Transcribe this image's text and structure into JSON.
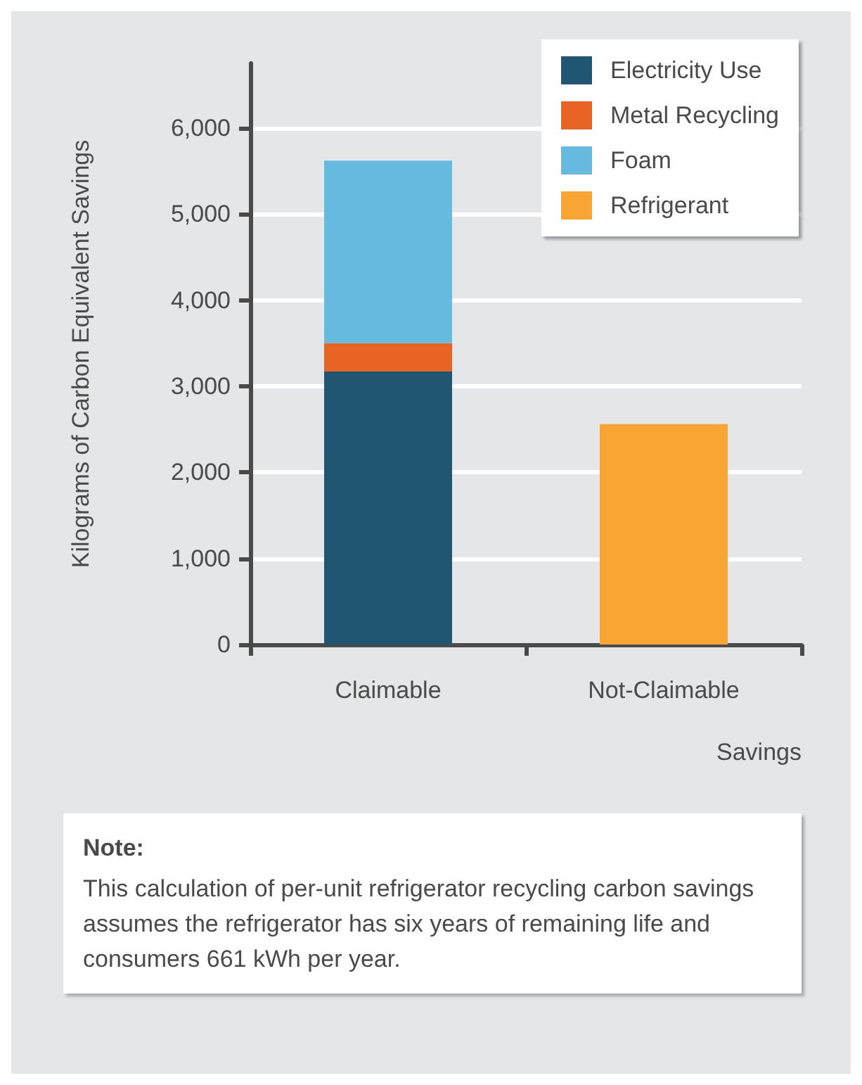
{
  "chart_data": {
    "type": "bar",
    "stacked": true,
    "xlabel": "Savings",
    "ylabel": "Kilograms of Carbon Equivalent Savings",
    "categories": [
      "Claimable",
      "Not-Claimable"
    ],
    "series": [
      {
        "name": "Electricity Use",
        "color": "#215673",
        "values": [
          3170,
          null
        ]
      },
      {
        "name": "Metal Recycling",
        "color": "#e86424",
        "values": [
          330,
          null
        ]
      },
      {
        "name": "Foam",
        "color": "#66b9df",
        "values": [
          2120,
          null
        ]
      },
      {
        "name": "Refrigerant",
        "color": "#f9a533",
        "values": [
          null,
          2560
        ]
      }
    ],
    "ylim": [
      0,
      6750
    ],
    "yticks": [
      0,
      {
        "value": 1000,
        "label": "1,000"
      },
      {
        "value": 2000,
        "label": "2,000"
      },
      {
        "value": 3000,
        "label": "3,000"
      },
      {
        "value": 4000,
        "label": "4,000"
      },
      {
        "value": 5000,
        "label": "5,000"
      },
      {
        "value": 6000,
        "label": "6,000"
      }
    ],
    "grid": "y",
    "legend": "top right",
    "annotations": [
      "Note:",
      "This calculation of per-unit refrigerator recycling carbon savings assumes the refrigerator has six years of remaining life and consumers 661 kWh per year."
    ]
  }
}
